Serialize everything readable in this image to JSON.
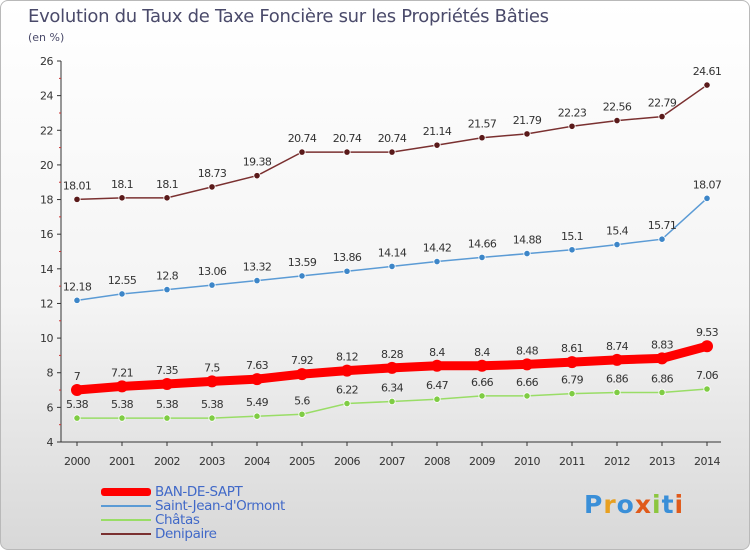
{
  "title": "Evolution du Taux de Taxe Foncière sur les Propriétés Bâties",
  "unit_label": "(en %)",
  "logo": {
    "text": "Proxiti",
    "letters": [
      {
        "ch": "P",
        "color": "#3a8fd8"
      },
      {
        "ch": "r",
        "color": "#e8a020"
      },
      {
        "ch": "o",
        "color": "#3a8fd8"
      },
      {
        "ch": "x",
        "color": "#e05a1a"
      },
      {
        "ch": "i",
        "color": "#8cc63f"
      },
      {
        "ch": "t",
        "color": "#3a8fd8"
      },
      {
        "ch": "i",
        "color": "#e05a1a"
      }
    ]
  },
  "chart_data": {
    "type": "line",
    "title": "Evolution du Taux de Taxe Foncière sur les Propriétés Bâties",
    "ylabel": "(en %)",
    "xlabel": "",
    "x": [
      "2000",
      "2001",
      "2002",
      "2003",
      "2004",
      "2005",
      "2006",
      "2007",
      "2008",
      "2009",
      "2010",
      "2011",
      "2012",
      "2013",
      "2014"
    ],
    "ylim": [
      4,
      26
    ],
    "yticks": [
      4,
      6,
      8,
      10,
      12,
      14,
      16,
      18,
      20,
      22,
      24,
      26
    ],
    "grid": false,
    "legend_position": "bottom-left",
    "series": [
      {
        "name": "BAN-DE-SAPT",
        "color": "#ff0000",
        "emphasis": true,
        "values": [
          7,
          7.21,
          7.35,
          7.5,
          7.63,
          7.92,
          8.12,
          8.28,
          8.4,
          8.4,
          8.48,
          8.61,
          8.74,
          8.83,
          9.53
        ],
        "labels": [
          "7",
          "7.21",
          "7.35",
          "7.5",
          "7.63",
          "7.92",
          "8.12",
          "8.28",
          "8.4",
          "8.4",
          "8.48",
          "8.61",
          "8.74",
          "8.83",
          "9.53"
        ]
      },
      {
        "name": "Saint-Jean-d'Ormont",
        "color": "#5b9bd5",
        "marker": "#3d86c8",
        "values": [
          12.18,
          12.55,
          12.8,
          13.06,
          13.32,
          13.59,
          13.86,
          14.14,
          14.42,
          14.66,
          14.88,
          15.1,
          15.4,
          15.71,
          18.07
        ],
        "labels": [
          "12.18",
          "12.55",
          "12.8",
          "13.06",
          "13.32",
          "13.59",
          "13.86",
          "14.14",
          "14.42",
          "14.66",
          "14.88",
          "15.1",
          "15.4",
          "15.71",
          "18.07"
        ]
      },
      {
        "name": "Châtas",
        "color": "#99dd66",
        "marker": "#7fcc44",
        "values": [
          5.38,
          5.38,
          5.38,
          5.38,
          5.49,
          5.6,
          6.22,
          6.34,
          6.47,
          6.66,
          6.66,
          6.79,
          6.86,
          6.86,
          7.06
        ],
        "labels": [
          "5.38",
          "5.38",
          "5.38",
          "5.38",
          "5.49",
          "5.6",
          "6.22",
          "6.34",
          "6.47",
          "6.66",
          "6.66",
          "6.79",
          "6.86",
          "6.86",
          "7.06"
        ]
      },
      {
        "name": "Denipaire",
        "color": "#7a3030",
        "marker": "#5a1a1a",
        "values": [
          18.01,
          18.1,
          18.1,
          18.73,
          19.38,
          20.74,
          20.74,
          20.74,
          21.14,
          21.57,
          21.79,
          22.23,
          22.56,
          22.79,
          24.61
        ],
        "labels": [
          "18.01",
          "18.1",
          "18.1",
          "18.73",
          "19.38",
          "20.74",
          "20.74",
          "20.74",
          "21.14",
          "21.57",
          "21.79",
          "22.23",
          "22.56",
          "22.79",
          "24.61"
        ]
      }
    ]
  }
}
